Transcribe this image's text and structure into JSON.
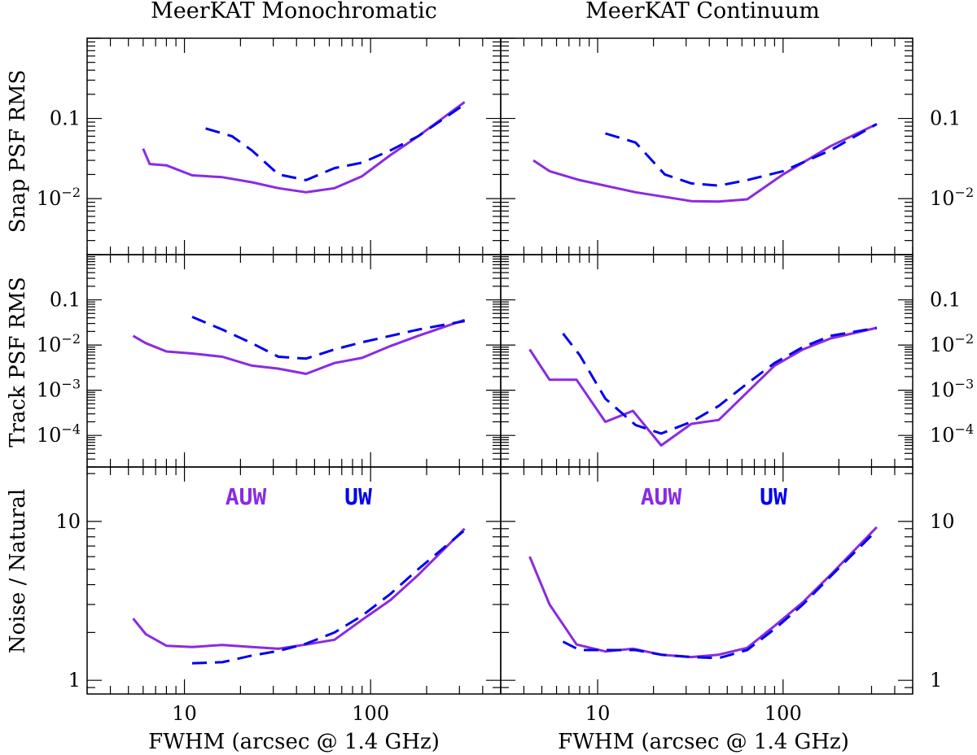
{
  "colors": {
    "auw": "#8a2be2",
    "uw": "#0000ee",
    "frame": "#000000"
  },
  "column_titles": [
    "MeerKAT Monochromatic",
    "MeerKAT Continuum"
  ],
  "x_axis_label": "FWHM (arcsec @ 1.4 GHz)",
  "row_labels": [
    "Snap PSF RMS",
    "Track PSF RMS",
    "Noise / Natural"
  ],
  "legend": {
    "auw": "AUW",
    "uw": "UW"
  },
  "chart_data": [
    {
      "type": "line",
      "xscale": "log",
      "yscale": "log",
      "title": "MeerKAT Monochromatic",
      "ylabel": "Snap PSF RMS",
      "xlim": [
        3,
        500
      ],
      "ylim": [
        0.002,
        1
      ],
      "x_ticks": [
        {
          "v": 10,
          "label": "10"
        },
        {
          "v": 100,
          "label": "100"
        }
      ],
      "y_ticks": [
        {
          "v": 0.1,
          "base": "0.1",
          "exp": ""
        },
        {
          "v": 0.01,
          "base": "10",
          "exp": "−2"
        }
      ],
      "series": [
        {
          "name": "AUW",
          "style": "solid",
          "x": [
            6,
            6.5,
            8,
            11,
            16,
            23,
            32,
            45,
            64,
            90,
            128,
            180,
            320
          ],
          "y": [
            0.042,
            0.027,
            0.026,
            0.0195,
            0.0185,
            0.016,
            0.0135,
            0.012,
            0.0135,
            0.019,
            0.035,
            0.06,
            0.16
          ]
        },
        {
          "name": "UW",
          "style": "dashed",
          "x": [
            13,
            18,
            23,
            32,
            45,
            64,
            90,
            128,
            180,
            320
          ],
          "y": [
            0.075,
            0.06,
            0.04,
            0.02,
            0.017,
            0.024,
            0.028,
            0.04,
            0.06,
            0.15
          ]
        }
      ]
    },
    {
      "type": "line",
      "xscale": "log",
      "yscale": "log",
      "title": "MeerKAT Continuum",
      "ylabel": "Snap PSF RMS",
      "xlim": [
        3,
        500
      ],
      "ylim": [
        0.002,
        1
      ],
      "x_ticks": [
        {
          "v": 10,
          "label": "10"
        },
        {
          "v": 100,
          "label": "100"
        }
      ],
      "y_ticks": [
        {
          "v": 0.1,
          "base": "0.1",
          "exp": ""
        },
        {
          "v": 0.01,
          "base": "10",
          "exp": "−2"
        }
      ],
      "series": [
        {
          "name": "AUW",
          "style": "solid",
          "x": [
            4.5,
            5.5,
            8,
            16,
            32,
            45,
            64,
            100,
            180,
            320
          ],
          "y": [
            0.03,
            0.022,
            0.017,
            0.012,
            0.0093,
            0.0092,
            0.0098,
            0.02,
            0.045,
            0.085
          ]
        },
        {
          "name": "UW",
          "style": "dashed",
          "x": [
            11,
            16,
            23,
            32,
            45,
            64,
            100,
            180,
            320
          ],
          "y": [
            0.065,
            0.05,
            0.02,
            0.0155,
            0.0145,
            0.017,
            0.022,
            0.04,
            0.085
          ]
        }
      ]
    },
    {
      "type": "line",
      "xscale": "log",
      "yscale": "log",
      "title": "MeerKAT Monochromatic",
      "ylabel": "Track PSF RMS",
      "xlim": [
        3,
        500
      ],
      "ylim": [
        2e-05,
        1
      ],
      "x_ticks": [
        {
          "v": 10,
          "label": "10"
        },
        {
          "v": 100,
          "label": "100"
        }
      ],
      "y_ticks": [
        {
          "v": 0.1,
          "base": "0.1",
          "exp": ""
        },
        {
          "v": 0.01,
          "base": "10",
          "exp": "−2"
        },
        {
          "v": 0.001,
          "base": "10",
          "exp": "−3"
        },
        {
          "v": 0.0001,
          "base": "10",
          "exp": "−4"
        }
      ],
      "series": [
        {
          "name": "AUW",
          "style": "solid",
          "x": [
            5.3,
            6.2,
            8,
            11,
            16,
            23,
            32,
            45,
            64,
            90,
            128,
            180,
            320
          ],
          "y": [
            0.016,
            0.011,
            0.0072,
            0.0065,
            0.0055,
            0.0035,
            0.003,
            0.0023,
            0.004,
            0.0052,
            0.0095,
            0.016,
            0.036
          ]
        },
        {
          "name": "UW",
          "style": "dashed",
          "x": [
            11,
            16,
            23,
            32,
            45,
            64,
            90,
            128,
            180,
            320
          ],
          "y": [
            0.042,
            0.022,
            0.011,
            0.0055,
            0.005,
            0.008,
            0.0115,
            0.016,
            0.022,
            0.034
          ]
        }
      ]
    },
    {
      "type": "line",
      "xscale": "log",
      "yscale": "log",
      "title": "MeerKAT Continuum",
      "ylabel": "Track PSF RMS",
      "xlim": [
        3,
        500
      ],
      "ylim": [
        2e-05,
        1
      ],
      "x_ticks": [
        {
          "v": 10,
          "label": "10"
        },
        {
          "v": 100,
          "label": "100"
        }
      ],
      "y_ticks": [
        {
          "v": 0.1,
          "base": "0.1",
          "exp": ""
        },
        {
          "v": 0.01,
          "base": "10",
          "exp": "−2"
        },
        {
          "v": 0.001,
          "base": "10",
          "exp": "−3"
        },
        {
          "v": 0.0001,
          "base": "10",
          "exp": "−4"
        }
      ],
      "series": [
        {
          "name": "AUW",
          "style": "solid",
          "x": [
            4.3,
            5.5,
            7.7,
            11,
            15.5,
            22,
            32,
            45,
            64,
            90,
            128,
            180,
            320
          ],
          "y": [
            0.008,
            0.0017,
            0.0017,
            0.0002,
            0.00035,
            6e-05,
            0.00018,
            0.00022,
            0.0009,
            0.0035,
            0.008,
            0.014,
            0.024
          ]
        },
        {
          "name": "UW",
          "style": "dashed",
          "x": [
            6.5,
            8,
            11,
            16,
            22,
            32,
            45,
            64,
            90,
            128,
            180,
            320
          ],
          "y": [
            0.018,
            0.006,
            0.00065,
            0.00017,
            0.00011,
            0.0002,
            0.00045,
            0.0014,
            0.004,
            0.009,
            0.016,
            0.024
          ]
        }
      ]
    },
    {
      "type": "line",
      "xscale": "log",
      "yscale": "log",
      "title": "MeerKAT Monochromatic",
      "ylabel": "Noise / Natural",
      "xlim": [
        3,
        500
      ],
      "ylim": [
        0.82,
        22
      ],
      "x_ticks": [
        {
          "v": 10,
          "label": "10"
        },
        {
          "v": 100,
          "label": "100"
        }
      ],
      "y_ticks": [
        {
          "v": 10,
          "base": "10",
          "exp": ""
        },
        {
          "v": 1,
          "base": "1",
          "exp": ""
        }
      ],
      "series": [
        {
          "name": "AUW",
          "style": "solid",
          "x": [
            5.3,
            6.2,
            8,
            11,
            16,
            23,
            32,
            45,
            64,
            90,
            128,
            180,
            320
          ],
          "y": [
            2.45,
            1.95,
            1.65,
            1.62,
            1.67,
            1.62,
            1.58,
            1.68,
            1.8,
            2.4,
            3.2,
            4.6,
            9
          ]
        },
        {
          "name": "UW",
          "style": "dashed",
          "x": [
            11,
            16,
            23,
            32,
            45,
            64,
            90,
            128,
            180,
            320
          ],
          "y": [
            1.28,
            1.3,
            1.43,
            1.53,
            1.7,
            2.0,
            2.55,
            3.5,
            5,
            8.8
          ]
        }
      ]
    },
    {
      "type": "line",
      "xscale": "log",
      "yscale": "log",
      "title": "MeerKAT Continuum",
      "ylabel": "Noise / Natural",
      "xlim": [
        3,
        500
      ],
      "ylim": [
        0.82,
        22
      ],
      "x_ticks": [
        {
          "v": 10,
          "label": "10"
        },
        {
          "v": 100,
          "label": "100"
        }
      ],
      "y_ticks": [
        {
          "v": 10,
          "base": "10",
          "exp": ""
        },
        {
          "v": 1,
          "base": "1",
          "exp": ""
        }
      ],
      "series": [
        {
          "name": "AUW",
          "style": "solid",
          "x": [
            4.3,
            5.5,
            7.7,
            11,
            15.5,
            22,
            32,
            45,
            64,
            90,
            128,
            180,
            320
          ],
          "y": [
            6,
            3,
            1.68,
            1.52,
            1.58,
            1.45,
            1.4,
            1.45,
            1.6,
            2.2,
            3.1,
            4.6,
            9.2
          ]
        },
        {
          "name": "UW",
          "style": "dashed",
          "x": [
            6.5,
            8,
            11,
            16,
            22,
            32,
            45,
            64,
            90,
            128,
            180,
            320
          ],
          "y": [
            1.75,
            1.55,
            1.55,
            1.55,
            1.45,
            1.4,
            1.38,
            1.55,
            2.1,
            3,
            4.5,
            8.8
          ]
        }
      ]
    }
  ]
}
